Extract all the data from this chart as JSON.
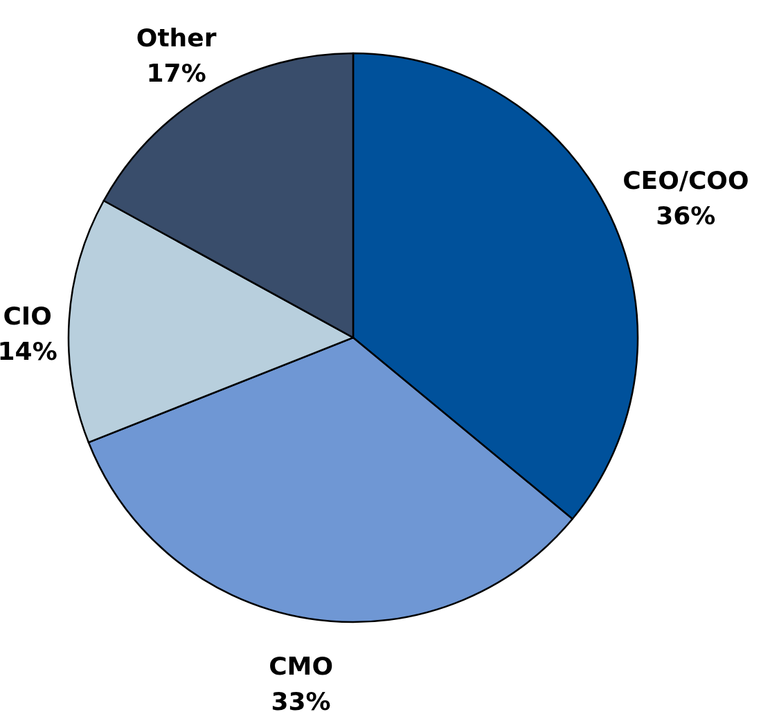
{
  "chart_data": {
    "type": "pie",
    "categories": [
      "CEO/COO",
      "CMO",
      "CIO",
      "Other"
    ],
    "values": [
      36,
      33,
      14,
      17
    ],
    "colors": [
      "#00519b",
      "#6f97d4",
      "#b8cfdd",
      "#394d6b"
    ],
    "value_labels": [
      "36%",
      "33%",
      "14%",
      "17%"
    ]
  }
}
